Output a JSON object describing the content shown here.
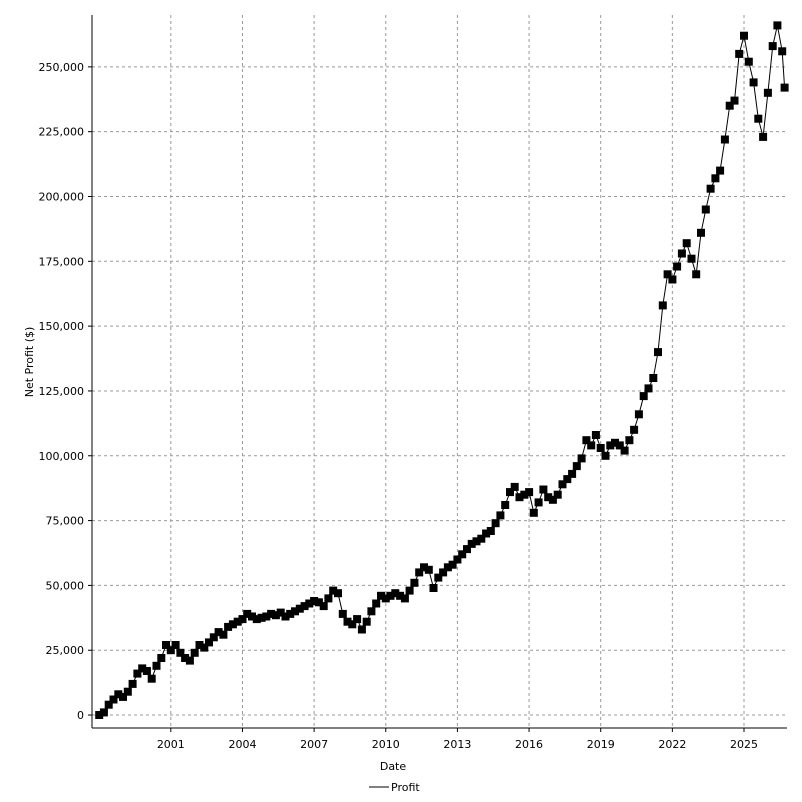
{
  "chart_data": {
    "type": "line",
    "title": "",
    "xlabel": "Date",
    "ylabel": "Net Profit ($)",
    "ylim": [
      -5000,
      270000
    ],
    "xlim": [
      1997.7,
      2026.8
    ],
    "grid": true,
    "legend_placement": "bottom-center",
    "x_ticks": [
      2001,
      2004,
      2007,
      2010,
      2013,
      2016,
      2019,
      2022,
      2025
    ],
    "x_tick_labels": [
      "2001",
      "2004",
      "2007",
      "2010",
      "2013",
      "2016",
      "2019",
      "2022",
      "2025"
    ],
    "y_ticks": [
      0,
      25000,
      50000,
      75000,
      100000,
      125000,
      150000,
      175000,
      200000,
      225000,
      250000
    ],
    "y_tick_labels": [
      "0",
      "25,000",
      "50,000",
      "75,000",
      "100,000",
      "125,000",
      "150,000",
      "175,000",
      "200,000",
      "225,000",
      "250,000"
    ],
    "series": [
      {
        "name": "Profit",
        "color": "#000000",
        "marker": "square",
        "points": [
          [
            1998.0,
            0
          ],
          [
            1998.2,
            1000
          ],
          [
            1998.4,
            4000
          ],
          [
            1998.6,
            6000
          ],
          [
            1998.8,
            8000
          ],
          [
            1999.0,
            7000
          ],
          [
            1999.2,
            9000
          ],
          [
            1999.4,
            12000
          ],
          [
            1999.6,
            16000
          ],
          [
            1999.8,
            18000
          ],
          [
            2000.0,
            17000
          ],
          [
            2000.2,
            14000
          ],
          [
            2000.4,
            19000
          ],
          [
            2000.6,
            22000
          ],
          [
            2000.8,
            27000
          ],
          [
            2001.0,
            25000
          ],
          [
            2001.2,
            27000
          ],
          [
            2001.4,
            24000
          ],
          [
            2001.6,
            22000
          ],
          [
            2001.8,
            21000
          ],
          [
            2002.0,
            24000
          ],
          [
            2002.2,
            27000
          ],
          [
            2002.4,
            26000
          ],
          [
            2002.6,
            28000
          ],
          [
            2002.8,
            30000
          ],
          [
            2003.0,
            32000
          ],
          [
            2003.2,
            31000
          ],
          [
            2003.4,
            34000
          ],
          [
            2003.6,
            35000
          ],
          [
            2003.8,
            36000
          ],
          [
            2004.0,
            37000
          ],
          [
            2004.2,
            39000
          ],
          [
            2004.4,
            38000
          ],
          [
            2004.6,
            37000
          ],
          [
            2004.8,
            37500
          ],
          [
            2005.0,
            38000
          ],
          [
            2005.2,
            39000
          ],
          [
            2005.4,
            38500
          ],
          [
            2005.6,
            39500
          ],
          [
            2005.8,
            38000
          ],
          [
            2006.0,
            39000
          ],
          [
            2006.2,
            40000
          ],
          [
            2006.4,
            41000
          ],
          [
            2006.6,
            42000
          ],
          [
            2006.8,
            43000
          ],
          [
            2007.0,
            44000
          ],
          [
            2007.2,
            43500
          ],
          [
            2007.4,
            42000
          ],
          [
            2007.6,
            45000
          ],
          [
            2007.8,
            48000
          ],
          [
            2008.0,
            47000
          ],
          [
            2008.2,
            39000
          ],
          [
            2008.4,
            36000
          ],
          [
            2008.6,
            35000
          ],
          [
            2008.8,
            37000
          ],
          [
            2009.0,
            33000
          ],
          [
            2009.2,
            36000
          ],
          [
            2009.4,
            40000
          ],
          [
            2009.6,
            43000
          ],
          [
            2009.8,
            46000
          ],
          [
            2010.0,
            45000
          ],
          [
            2010.2,
            46000
          ],
          [
            2010.4,
            47000
          ],
          [
            2010.6,
            46000
          ],
          [
            2010.8,
            45000
          ],
          [
            2011.0,
            48000
          ],
          [
            2011.2,
            51000
          ],
          [
            2011.4,
            55000
          ],
          [
            2011.6,
            57000
          ],
          [
            2011.8,
            56000
          ],
          [
            2012.0,
            49000
          ],
          [
            2012.2,
            53000
          ],
          [
            2012.4,
            55000
          ],
          [
            2012.6,
            57000
          ],
          [
            2012.8,
            58000
          ],
          [
            2013.0,
            60000
          ],
          [
            2013.2,
            62000
          ],
          [
            2013.4,
            64000
          ],
          [
            2013.6,
            66000
          ],
          [
            2013.8,
            67000
          ],
          [
            2014.0,
            68000
          ],
          [
            2014.2,
            70000
          ],
          [
            2014.4,
            71000
          ],
          [
            2014.6,
            74000
          ],
          [
            2014.8,
            77000
          ],
          [
            2015.0,
            81000
          ],
          [
            2015.2,
            86000
          ],
          [
            2015.4,
            88000
          ],
          [
            2015.6,
            84000
          ],
          [
            2015.8,
            85000
          ],
          [
            2016.0,
            86000
          ],
          [
            2016.2,
            78000
          ],
          [
            2016.4,
            82000
          ],
          [
            2016.6,
            87000
          ],
          [
            2016.8,
            84000
          ],
          [
            2017.0,
            83000
          ],
          [
            2017.2,
            85000
          ],
          [
            2017.4,
            89000
          ],
          [
            2017.6,
            91000
          ],
          [
            2017.8,
            93000
          ],
          [
            2018.0,
            96000
          ],
          [
            2018.2,
            99000
          ],
          [
            2018.4,
            106000
          ],
          [
            2018.6,
            104000
          ],
          [
            2018.8,
            108000
          ],
          [
            2019.0,
            103000
          ],
          [
            2019.2,
            100000
          ],
          [
            2019.4,
            104000
          ],
          [
            2019.6,
            105000
          ],
          [
            2019.8,
            104000
          ],
          [
            2020.0,
            102000
          ],
          [
            2020.2,
            106000
          ],
          [
            2020.4,
            110000
          ],
          [
            2020.6,
            116000
          ],
          [
            2020.8,
            123000
          ],
          [
            2021.0,
            126000
          ],
          [
            2021.2,
            130000
          ],
          [
            2021.4,
            140000
          ],
          [
            2021.6,
            158000
          ],
          [
            2021.8,
            170000
          ],
          [
            2022.0,
            168000
          ],
          [
            2022.2,
            173000
          ],
          [
            2022.4,
            178000
          ],
          [
            2022.6,
            182000
          ],
          [
            2022.8,
            176000
          ],
          [
            2023.0,
            170000
          ],
          [
            2023.2,
            186000
          ],
          [
            2023.4,
            195000
          ],
          [
            2023.6,
            203000
          ],
          [
            2023.8,
            207000
          ],
          [
            2024.0,
            210000
          ],
          [
            2024.2,
            222000
          ],
          [
            2024.4,
            235000
          ],
          [
            2024.6,
            237000
          ],
          [
            2024.8,
            255000
          ],
          [
            2025.0,
            262000
          ],
          [
            2025.2,
            252000
          ],
          [
            2025.4,
            244000
          ],
          [
            2025.6,
            230000
          ],
          [
            2025.8,
            223000
          ],
          [
            2026.0,
            240000
          ],
          [
            2026.2,
            258000
          ],
          [
            2026.4,
            266000
          ],
          [
            2026.6,
            256000
          ],
          [
            2026.7,
            242000
          ]
        ]
      }
    ]
  }
}
